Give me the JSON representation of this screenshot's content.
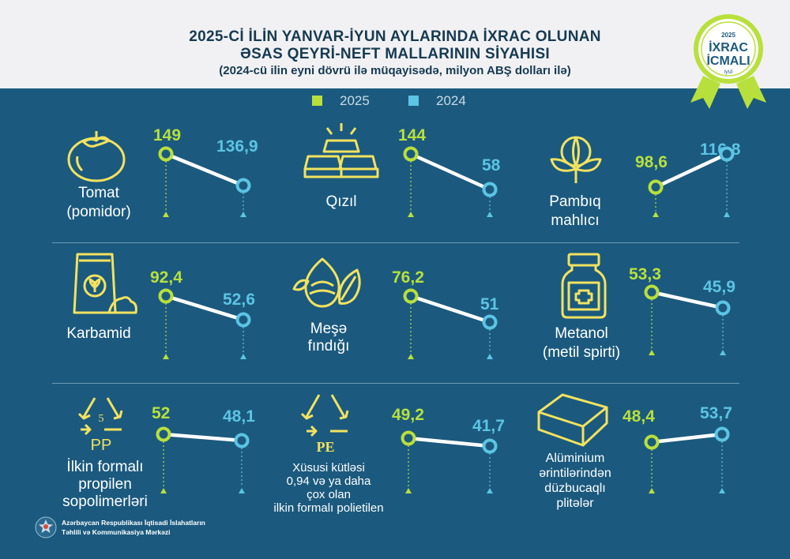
{
  "title": {
    "line1": "2025-Cİ İLİN YANVAR-İYUN AYLARINDA İXRAC OLUNAN",
    "line2": "ƏSAS QEYRİ-NEFT MALLARININ SİYAHISI",
    "line3": "(2024-cü ilin eyni dövrü ilə müqayisədə, milyon ABŞ dolları ilə)"
  },
  "badge": {
    "year": "2025",
    "line1": "İXRAC",
    "line2": "İCMALI",
    "month": "iyul"
  },
  "legend": {
    "a": "2025",
    "b": "2024"
  },
  "colors": {
    "c2025": "#b8e03c",
    "c2024": "#5cc4e4",
    "background": "#1b5a7e",
    "connector": "#ffffff"
  },
  "footer": {
    "line1": "Azərbaycan Respublikası İqtisadi İslahatların",
    "line2": "Təhlili və Kommunikasiya Mərkəzi"
  },
  "chart_data": {
    "type": "line",
    "series": [
      {
        "name": "2025"
      },
      {
        "name": "2024"
      }
    ],
    "items": [
      {
        "label_lines": [
          "Tomat",
          "(pomidor)"
        ],
        "icon": "tomato-icon",
        "v2025": 149,
        "v2024": 136.9,
        "t2025": "149",
        "t2024": "136,9"
      },
      {
        "label_lines": [
          "Qızıl"
        ],
        "icon": "gold-bars-icon",
        "v2025": 144,
        "v2024": 58,
        "t2025": "144",
        "t2024": "58"
      },
      {
        "label_lines": [
          "Pambıq",
          "mahlıcı"
        ],
        "icon": "cotton-icon",
        "v2025": 98.6,
        "v2024": 116.8,
        "t2025": "98,6",
        "t2024": "116,8"
      },
      {
        "label_lines": [
          "Karbamid"
        ],
        "icon": "fertilizer-bag-icon",
        "v2025": 92.4,
        "v2024": 52.6,
        "t2025": "92,4",
        "t2024": "52,6"
      },
      {
        "label_lines": [
          "Meşə",
          "fındığı"
        ],
        "icon": "hazelnut-icon",
        "v2025": 76.2,
        "v2024": 51,
        "t2025": "76,2",
        "t2024": "51"
      },
      {
        "label_lines": [
          "Metanol",
          "(metil spirti)"
        ],
        "icon": "medicine-bottle-icon",
        "v2025": 53.3,
        "v2024": 45.9,
        "t2025": "53,3",
        "t2024": "45,9"
      },
      {
        "label_lines": [
          "İlkin formalı",
          "propilen",
          "sopolimerləri"
        ],
        "icon": "recycle-pp-icon",
        "icon_text": [
          "5",
          "PP"
        ],
        "v2025": 52,
        "v2024": 48.1,
        "t2025": "52",
        "t2024": "48,1"
      },
      {
        "label_lines": [
          "Xüsusi kütləsi",
          "0,94 və ya daha",
          "çox olan",
          "ilkin formalı polietilen"
        ],
        "icon": "recycle-pe-icon",
        "icon_text": [
          "PE"
        ],
        "v2025": 49.2,
        "v2024": 41.7,
        "t2025": "49,2",
        "t2024": "41,7"
      },
      {
        "label_lines": [
          "Alüminium",
          "ərintilərindən",
          "düzbucaqlı",
          "plitələr"
        ],
        "icon": "aluminium-plate-icon",
        "v2025": 48.4,
        "v2024": 53.7,
        "t2025": "48,4",
        "t2024": "53,7"
      }
    ]
  }
}
